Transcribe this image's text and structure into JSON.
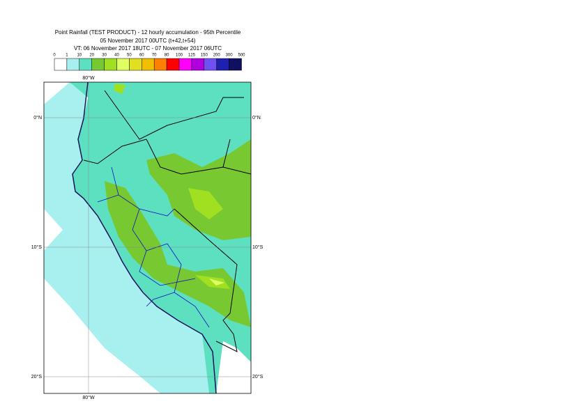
{
  "header": {
    "title": "Point Rainfall (TEST PRODUCT) - 12 hourly accumulation - 95th Percentile",
    "base_time": "05 November 2017 00UTC (t+42,t+54)",
    "valid_time": "VT: 06 November 2017 18UTC - 07 November 2017 06UTC"
  },
  "legend": {
    "labels": [
      "0",
      "1",
      "10",
      "20",
      "30",
      "40",
      "50",
      "60",
      "70",
      "80",
      "100",
      "125",
      "150",
      "200",
      "300",
      "500"
    ],
    "colors": [
      "#ffffff",
      "#a8f0f0",
      "#5ce0c0",
      "#78c832",
      "#a0e020",
      "#e0ff60",
      "#e0e020",
      "#f0c000",
      "#ff8000",
      "#ff0000",
      "#ff00ff",
      "#b000e0",
      "#7050f0",
      "#2020b0",
      "#101060"
    ]
  },
  "map": {
    "top_labels": [
      "80°W"
    ],
    "bottom_labels": [
      "80°W"
    ],
    "left_labels": [
      "0°N",
      "10°S",
      "20°S"
    ],
    "right_labels": [
      "0°N",
      "10°S",
      "20°S"
    ]
  }
}
